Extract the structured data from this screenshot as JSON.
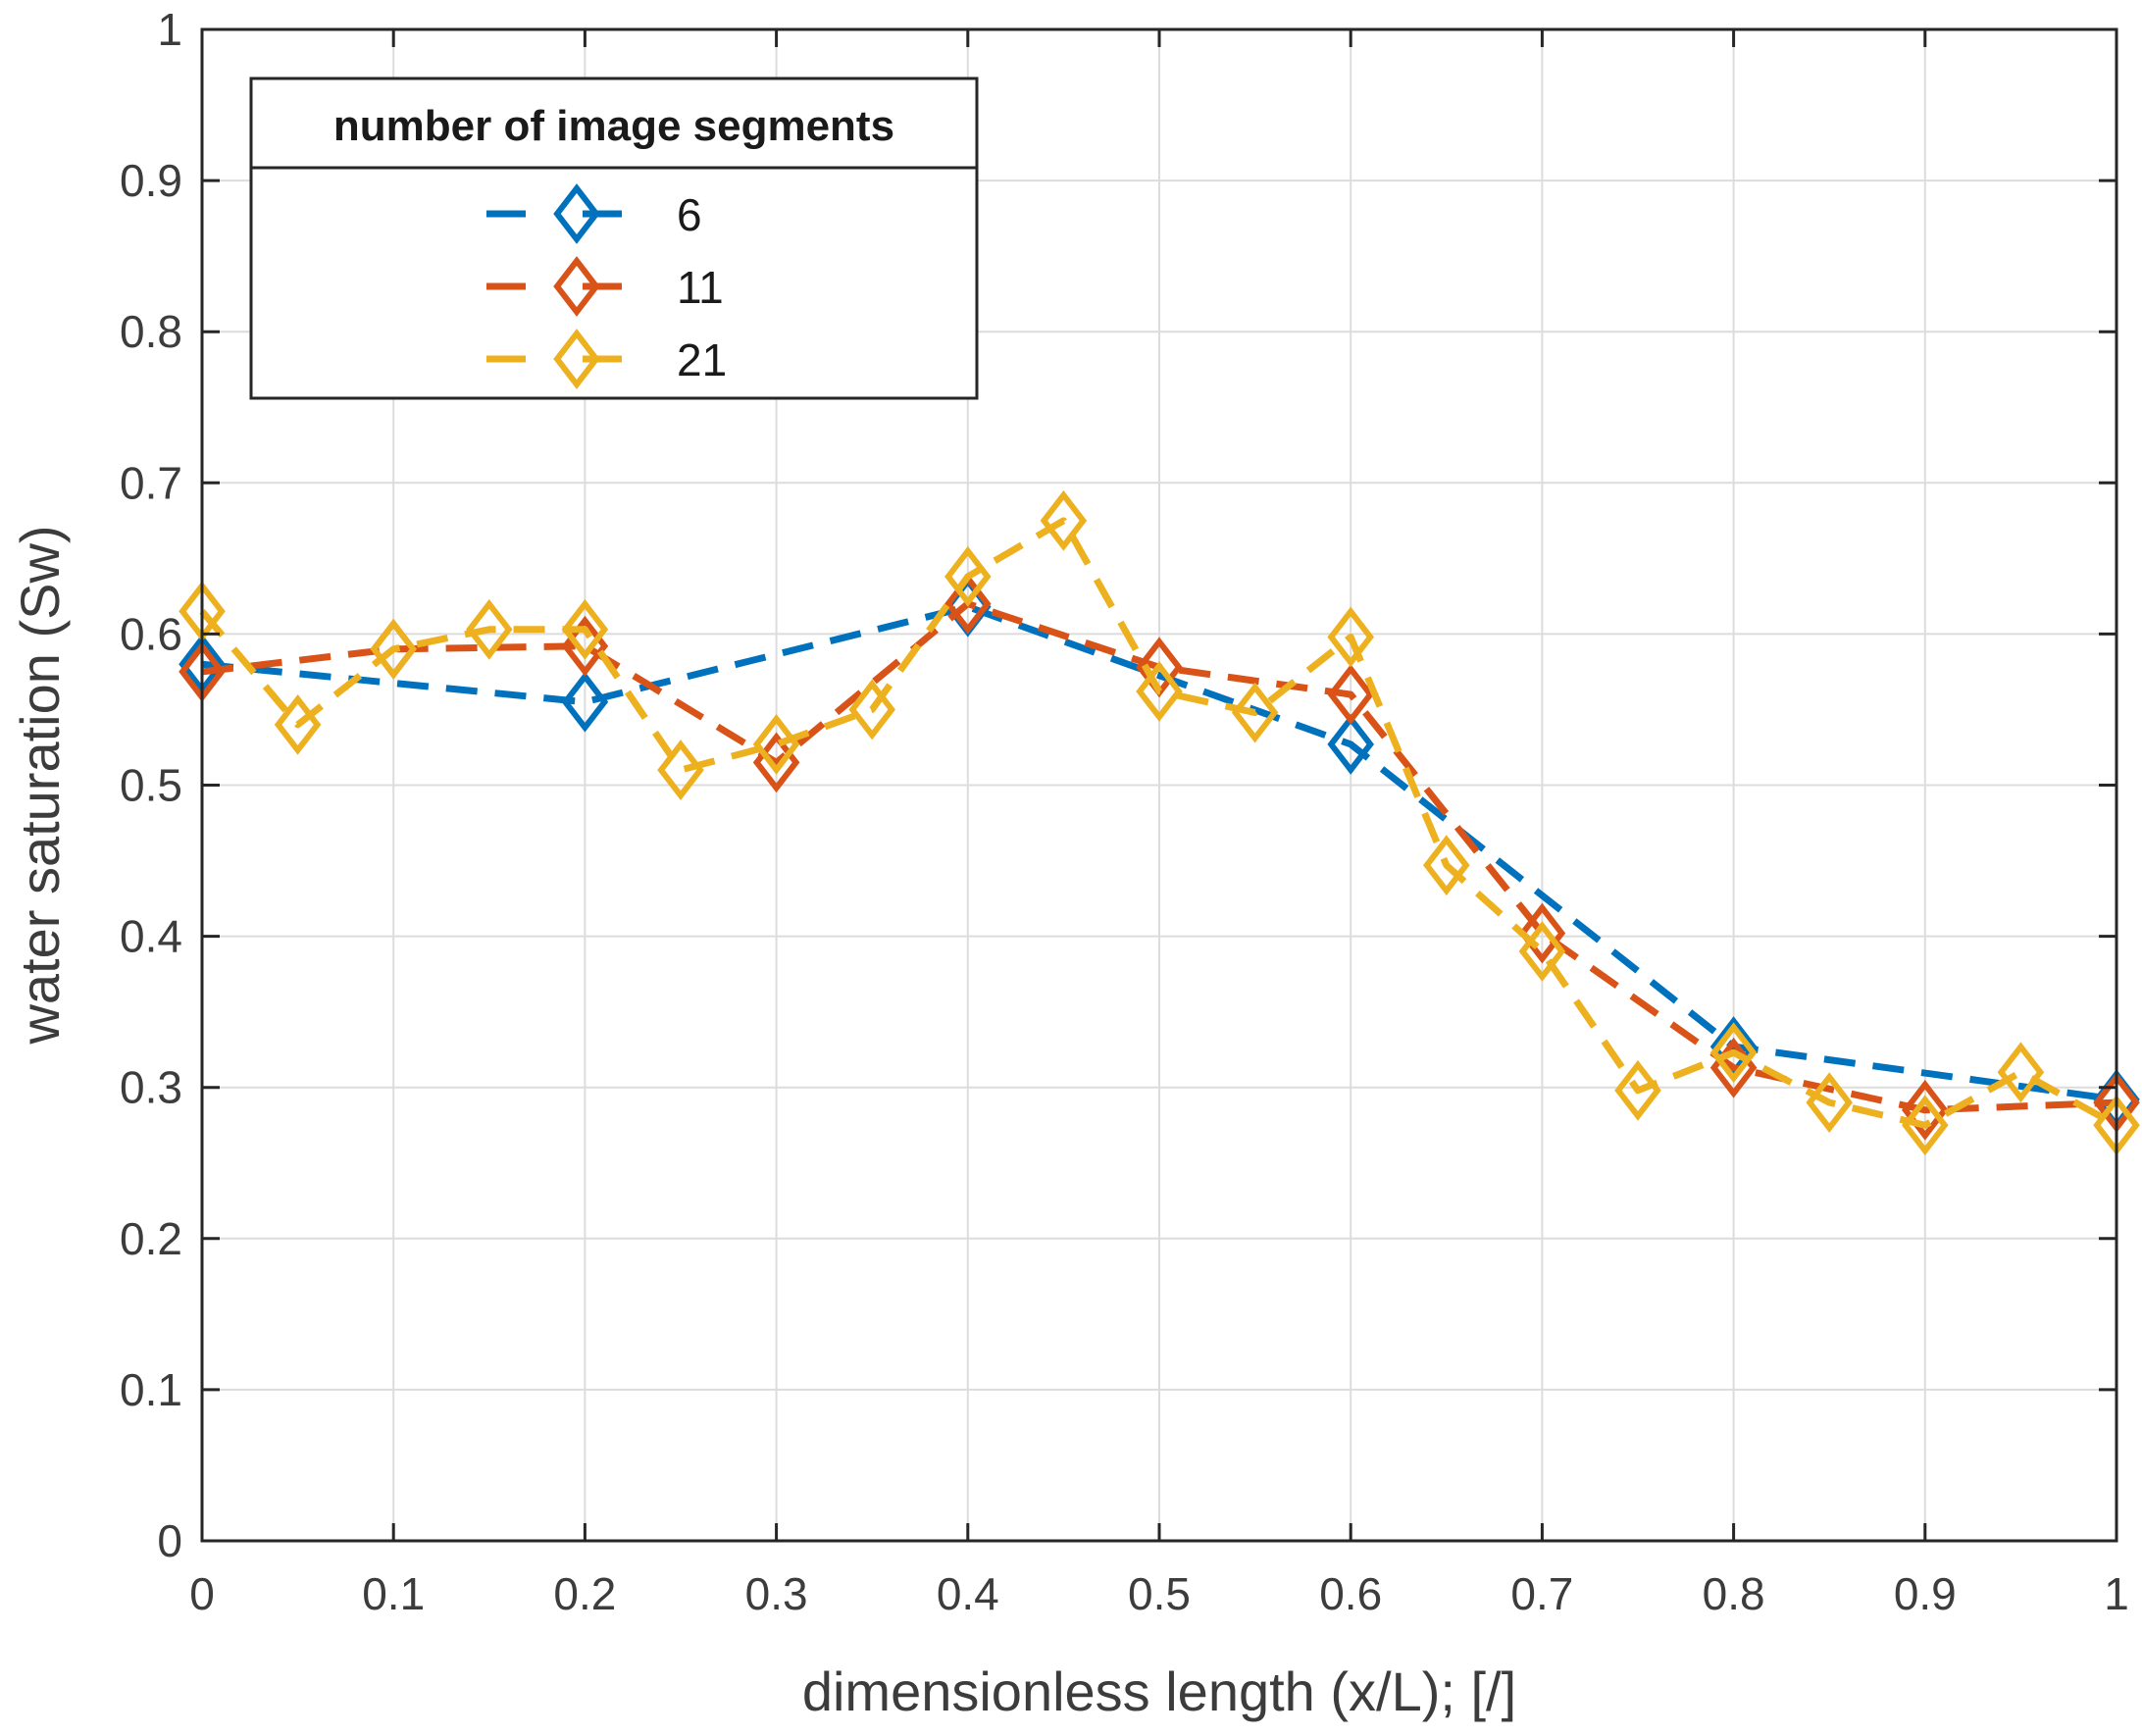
{
  "chart_data": {
    "type": "line",
    "xlabel": "dimensionless length (x/L); [/]",
    "ylabel": "water saturation (Sw)",
    "xlim": [
      0,
      1
    ],
    "ylim": [
      0,
      1
    ],
    "grid": true,
    "x_ticks": [
      "0",
      "0.1",
      "0.2",
      "0.3",
      "0.4",
      "0.5",
      "0.6",
      "0.7",
      "0.8",
      "0.9",
      "1"
    ],
    "y_ticks": [
      "0",
      "0.1",
      "0.2",
      "0.3",
      "0.4",
      "0.5",
      "0.6",
      "0.7",
      "0.8",
      "0.9",
      "1"
    ],
    "legend": {
      "title": "number of image segments",
      "position": "top-left"
    },
    "series": [
      {
        "name": "6",
        "color": "#0072BD",
        "marker": "diamond",
        "line_style": "dashed",
        "x": [
          0,
          0.2,
          0.4,
          0.6,
          0.8,
          1.0
        ],
        "y": [
          0.58,
          0.555,
          0.618,
          0.527,
          0.327,
          0.292
        ]
      },
      {
        "name": "11",
        "color": "#D95319",
        "marker": "diamond",
        "line_style": "dashed",
        "x": [
          0,
          0.1,
          0.2,
          0.3,
          0.4,
          0.5,
          0.6,
          0.7,
          0.8,
          0.9,
          1.0
        ],
        "y": [
          0.575,
          0.59,
          0.592,
          0.515,
          0.62,
          0.578,
          0.56,
          0.402,
          0.313,
          0.285,
          0.29
        ]
      },
      {
        "name": "21",
        "color": "#EDB120",
        "marker": "diamond",
        "line_style": "dashed",
        "x": [
          0,
          0.05,
          0.1,
          0.15,
          0.2,
          0.25,
          0.3,
          0.35,
          0.4,
          0.45,
          0.5,
          0.55,
          0.6,
          0.65,
          0.7,
          0.75,
          0.8,
          0.85,
          0.9,
          0.95,
          1.0
        ],
        "y": [
          0.615,
          0.54,
          0.59,
          0.603,
          0.603,
          0.51,
          0.527,
          0.55,
          0.638,
          0.675,
          0.562,
          0.548,
          0.598,
          0.447,
          0.39,
          0.298,
          0.323,
          0.29,
          0.275,
          0.31,
          0.275
        ]
      }
    ]
  }
}
